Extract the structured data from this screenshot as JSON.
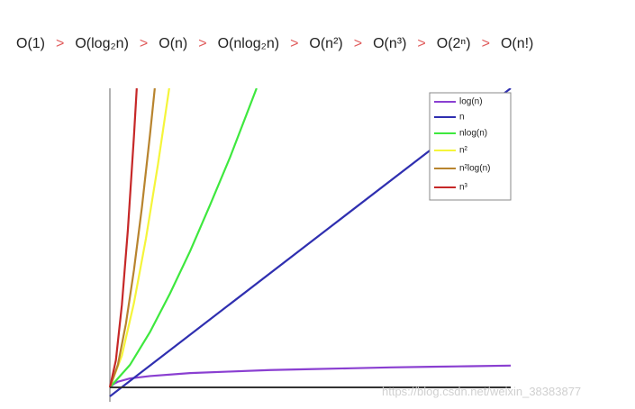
{
  "header": {
    "terms": [
      "O(1)",
      "O(log₂n)",
      "O(n)",
      "O(nlog₂n)",
      "O(n²)",
      "O(n³)",
      "O(2ⁿ)",
      "O(n!)"
    ],
    "separator": ">"
  },
  "watermark": "https://blog.csdn.net/weixin_38383877",
  "chart_data": {
    "type": "line",
    "xlim": [
      0,
      100
    ],
    "ylim": [
      -3,
      100
    ],
    "series": [
      {
        "name": "log(n)",
        "color": "#8a3fd1",
        "x": [
          0,
          1,
          2,
          5,
          10,
          20,
          30,
          40,
          50,
          60,
          70,
          80,
          90,
          100
        ],
        "values": [
          0,
          1.2,
          1.9,
          3,
          3.8,
          4.8,
          5.3,
          5.8,
          6.1,
          6.4,
          6.7,
          6.9,
          7.1,
          7.3
        ]
      },
      {
        "name": "n",
        "color": "#2f2fb0",
        "x": [
          0,
          100
        ],
        "values": [
          -3,
          100
        ]
      },
      {
        "name": "nlog(n)",
        "color": "#3ee83e",
        "x": [
          0,
          5,
          10,
          15,
          20,
          25,
          30,
          36.6
        ],
        "values": [
          0,
          7.5,
          18.5,
          31.4,
          45.5,
          61,
          77,
          100
        ]
      },
      {
        "name": "n²",
        "color": "#f5f53a",
        "x": [
          0,
          3,
          6,
          9,
          12,
          14.8
        ],
        "values": [
          0,
          10.7,
          28.2,
          49.8,
          74.6,
          100
        ]
      },
      {
        "name": "n²log(n)",
        "color": "#b8842e",
        "x": [
          0,
          2,
          4,
          6,
          8,
          10,
          11.2
        ],
        "values": [
          0,
          7.6,
          21.3,
          39.2,
          60.3,
          84.4,
          100
        ]
      },
      {
        "name": "n³",
        "color": "#c62828",
        "x": [
          0,
          1.5,
          3,
          4.5,
          6,
          6.7
        ],
        "values": [
          0,
          9.1,
          27.7,
          52.9,
          83.9,
          100
        ]
      }
    ]
  }
}
